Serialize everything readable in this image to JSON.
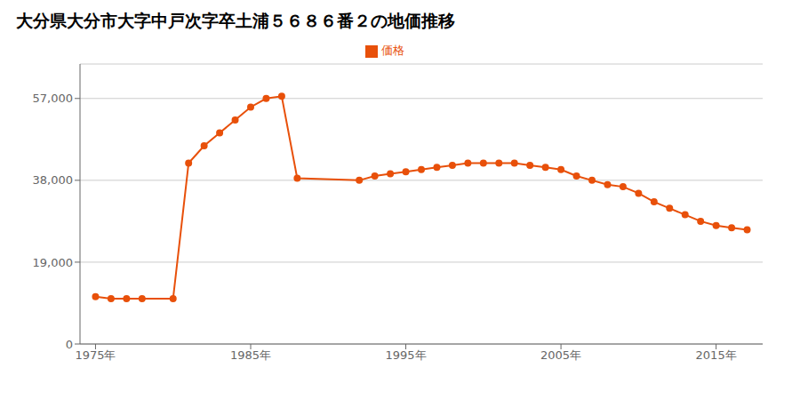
{
  "chart_data": {
    "type": "line",
    "title": "大分県大分市大字中戸次字卒土浦５６８６番２の地価推移",
    "x": [
      1975,
      1976,
      1977,
      1978,
      1980,
      1981,
      1982,
      1983,
      1984,
      1985,
      1986,
      1987,
      1988,
      1992,
      1993,
      1994,
      1995,
      1996,
      1997,
      1998,
      1999,
      2000,
      2001,
      2002,
      2003,
      2004,
      2005,
      2006,
      2007,
      2008,
      2009,
      2010,
      2011,
      2012,
      2013,
      2014,
      2015,
      2016,
      2017
    ],
    "series": [
      {
        "name": "価格",
        "color": "#e8500a",
        "values": [
          11000,
          10500,
          10500,
          10500,
          10500,
          42000,
          46000,
          49000,
          52000,
          55000,
          57000,
          57500,
          38500,
          38000,
          39000,
          39500,
          40000,
          40500,
          41000,
          41500,
          42000,
          42000,
          42000,
          42000,
          41500,
          41000,
          40500,
          39000,
          38000,
          37000,
          36500,
          35000,
          33000,
          31500,
          30000,
          28500,
          27500,
          27000,
          26500
        ],
        "marker": "circle"
      }
    ],
    "xlim": [
      1974,
      2018
    ],
    "xticks": [
      {
        "value": 1975,
        "label": "1975年"
      },
      {
        "value": 1985,
        "label": "1985年"
      },
      {
        "value": 1995,
        "label": "1995年"
      },
      {
        "value": 2005,
        "label": "2005年"
      },
      {
        "value": 2015,
        "label": "2015年"
      }
    ],
    "ylim": [
      0,
      65000
    ],
    "yticks": [
      0,
      {
        "value": 19000,
        "label": "19,000"
      },
      {
        "value": 38000,
        "label": "38,000"
      },
      {
        "value": 57000,
        "label": "57,000"
      }
    ],
    "grid": true,
    "legend": "top"
  }
}
